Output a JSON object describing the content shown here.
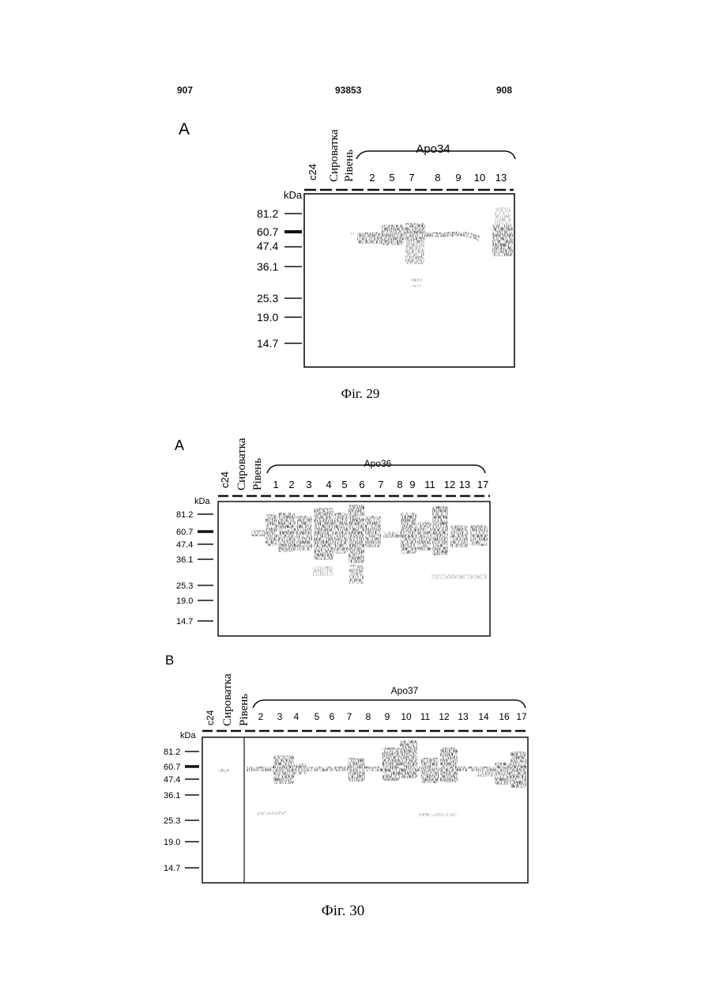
{
  "header": {
    "left_page": "907",
    "patent_no": "93853",
    "right_page": "908"
  },
  "unit": "kDa",
  "markers": [
    "81.2",
    "60.7",
    "47.4",
    "36.1",
    "25.3",
    "19.0",
    "14.7"
  ],
  "control_labels": [
    "c24",
    "Сироватка",
    "Рівень"
  ],
  "figures": [
    {
      "caption": "Фіг. 29",
      "panels": [
        {
          "letter": "A",
          "group": "Apo34",
          "lanes": [
            "2",
            "5",
            "7",
            "8",
            "9",
            "10",
            "13"
          ]
        }
      ]
    },
    {
      "caption": "Фіг. 30",
      "panels": [
        {
          "letter": "A",
          "group": "Apo36",
          "lanes": [
            "1",
            "2",
            "3",
            "4",
            "5",
            "6",
            "7",
            "8",
            "9",
            "11",
            "12",
            "13",
            "17"
          ]
        },
        {
          "letter": "B",
          "group": "Apo37",
          "lanes": [
            "2",
            "3",
            "4",
            "5",
            "6",
            "7",
            "8",
            "9",
            "10",
            "11",
            "12",
            "13",
            "14",
            "16",
            "17"
          ]
        }
      ]
    }
  ]
}
